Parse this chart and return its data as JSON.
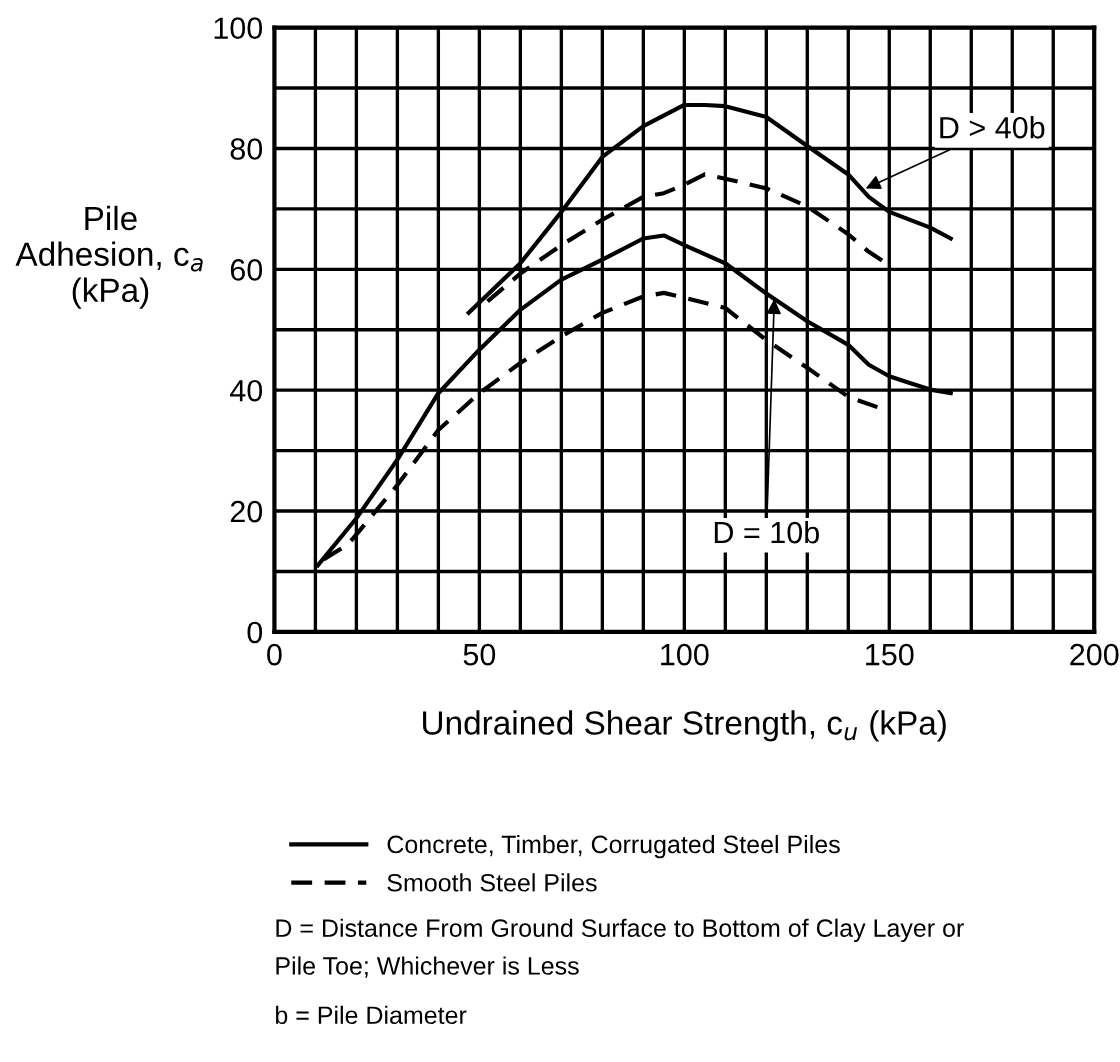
{
  "chart_data": {
    "type": "line",
    "xlabel": "Undrained Shear Strength, c$_{u}$ (kPa)",
    "ylabel": "Pile\nAdhesion, c$_{a}$\n(kPa)",
    "series": [
      {
        "name": "Concrete, Timber, Corrugated Steel Piles",
        "color": "#000000",
        "line_style": "solid",
        "x": [
          47.4,
          60,
          70,
          80,
          90,
          100,
          105,
          110,
          120,
          130,
          140,
          145,
          150,
          160,
          165
        ],
        "values": [
          52.8,
          61,
          69.5,
          78.6,
          83.7,
          87.2,
          87.2,
          87,
          85.2,
          80.4,
          75.7,
          72,
          69.5,
          66.9,
          65.1
        ]
      },
      {
        "name": "Smooth Steel Piles",
        "color": "#000000",
        "line_style": "dashed",
        "x": [
          52,
          60,
          70,
          80,
          90,
          95,
          100,
          105,
          110,
          120,
          130,
          140,
          145,
          150
        ],
        "values": [
          54.7,
          59.3,
          64,
          68.2,
          72,
          72.6,
          74,
          75.7,
          75,
          73.4,
          70.4,
          65.8,
          62.9,
          60.7
        ]
      },
      {
        "color": "#000000",
        "line_style": "solid",
        "x": [
          10.6,
          20,
          30,
          40,
          50,
          60,
          70,
          80,
          90,
          95,
          100,
          110,
          120,
          130,
          140,
          145,
          150,
          155,
          160,
          165
        ],
        "values": [
          11,
          18.8,
          28.5,
          39.5,
          46.7,
          53.3,
          58.3,
          61.6,
          65.1,
          65.6,
          64,
          61,
          56,
          51.4,
          47.5,
          44.2,
          42.3,
          41.2,
          40.1,
          39.5
        ]
      },
      {
        "color": "#000000",
        "line_style": "dashed",
        "x": [
          12,
          18,
          30,
          40,
          50,
          60,
          70,
          80,
          90,
          95,
          100,
          110,
          120,
          130,
          140,
          150
        ],
        "values": [
          12,
          14.5,
          24.3,
          33.4,
          39.5,
          44.5,
          48.9,
          52.8,
          55.5,
          56.1,
          55.3,
          53.6,
          48.3,
          43.7,
          38.9,
          36.5
        ]
      }
    ],
    "xlim": [
      0,
      200
    ],
    "xticks": [
      0,
      {
        "value": 10,
        "label": null
      },
      {
        "value": 20,
        "label": null
      },
      {
        "value": 30,
        "label": null
      },
      {
        "value": 40,
        "label": null
      },
      50,
      {
        "value": 60,
        "label": null
      },
      {
        "value": 70,
        "label": null
      },
      {
        "value": 80,
        "label": null
      },
      {
        "value": 90,
        "label": null
      },
      100,
      {
        "value": 110,
        "label": null
      },
      {
        "value": 120,
        "label": null
      },
      {
        "value": 130,
        "label": null
      },
      {
        "value": 140,
        "label": null
      },
      150,
      {
        "value": 160,
        "label": null
      },
      {
        "value": 170,
        "label": null
      },
      {
        "value": 180,
        "label": null
      },
      {
        "value": 190,
        "label": null
      },
      200
    ],
    "ylim": [
      0,
      100
    ],
    "yticks": [
      0,
      {
        "value": 10,
        "label": null
      },
      20,
      {
        "value": 30,
        "label": null
      },
      40,
      {
        "value": 50,
        "label": null
      },
      60,
      {
        "value": 70,
        "label": null
      },
      80,
      {
        "value": 90,
        "label": null
      },
      100
    ],
    "grid": true,
    "legend": "bottom",
    "annotations": [
      {
        "text": "D > 40b",
        "x": 143,
        "y": 73
      },
      {
        "text": "D = 10b",
        "x": 122,
        "y": 56
      },
      "D = Distance From Ground Surface to Bottom of Clay Layer or\nPile Toe; Whichever is Less",
      "b = Pile Diameter"
    ]
  }
}
